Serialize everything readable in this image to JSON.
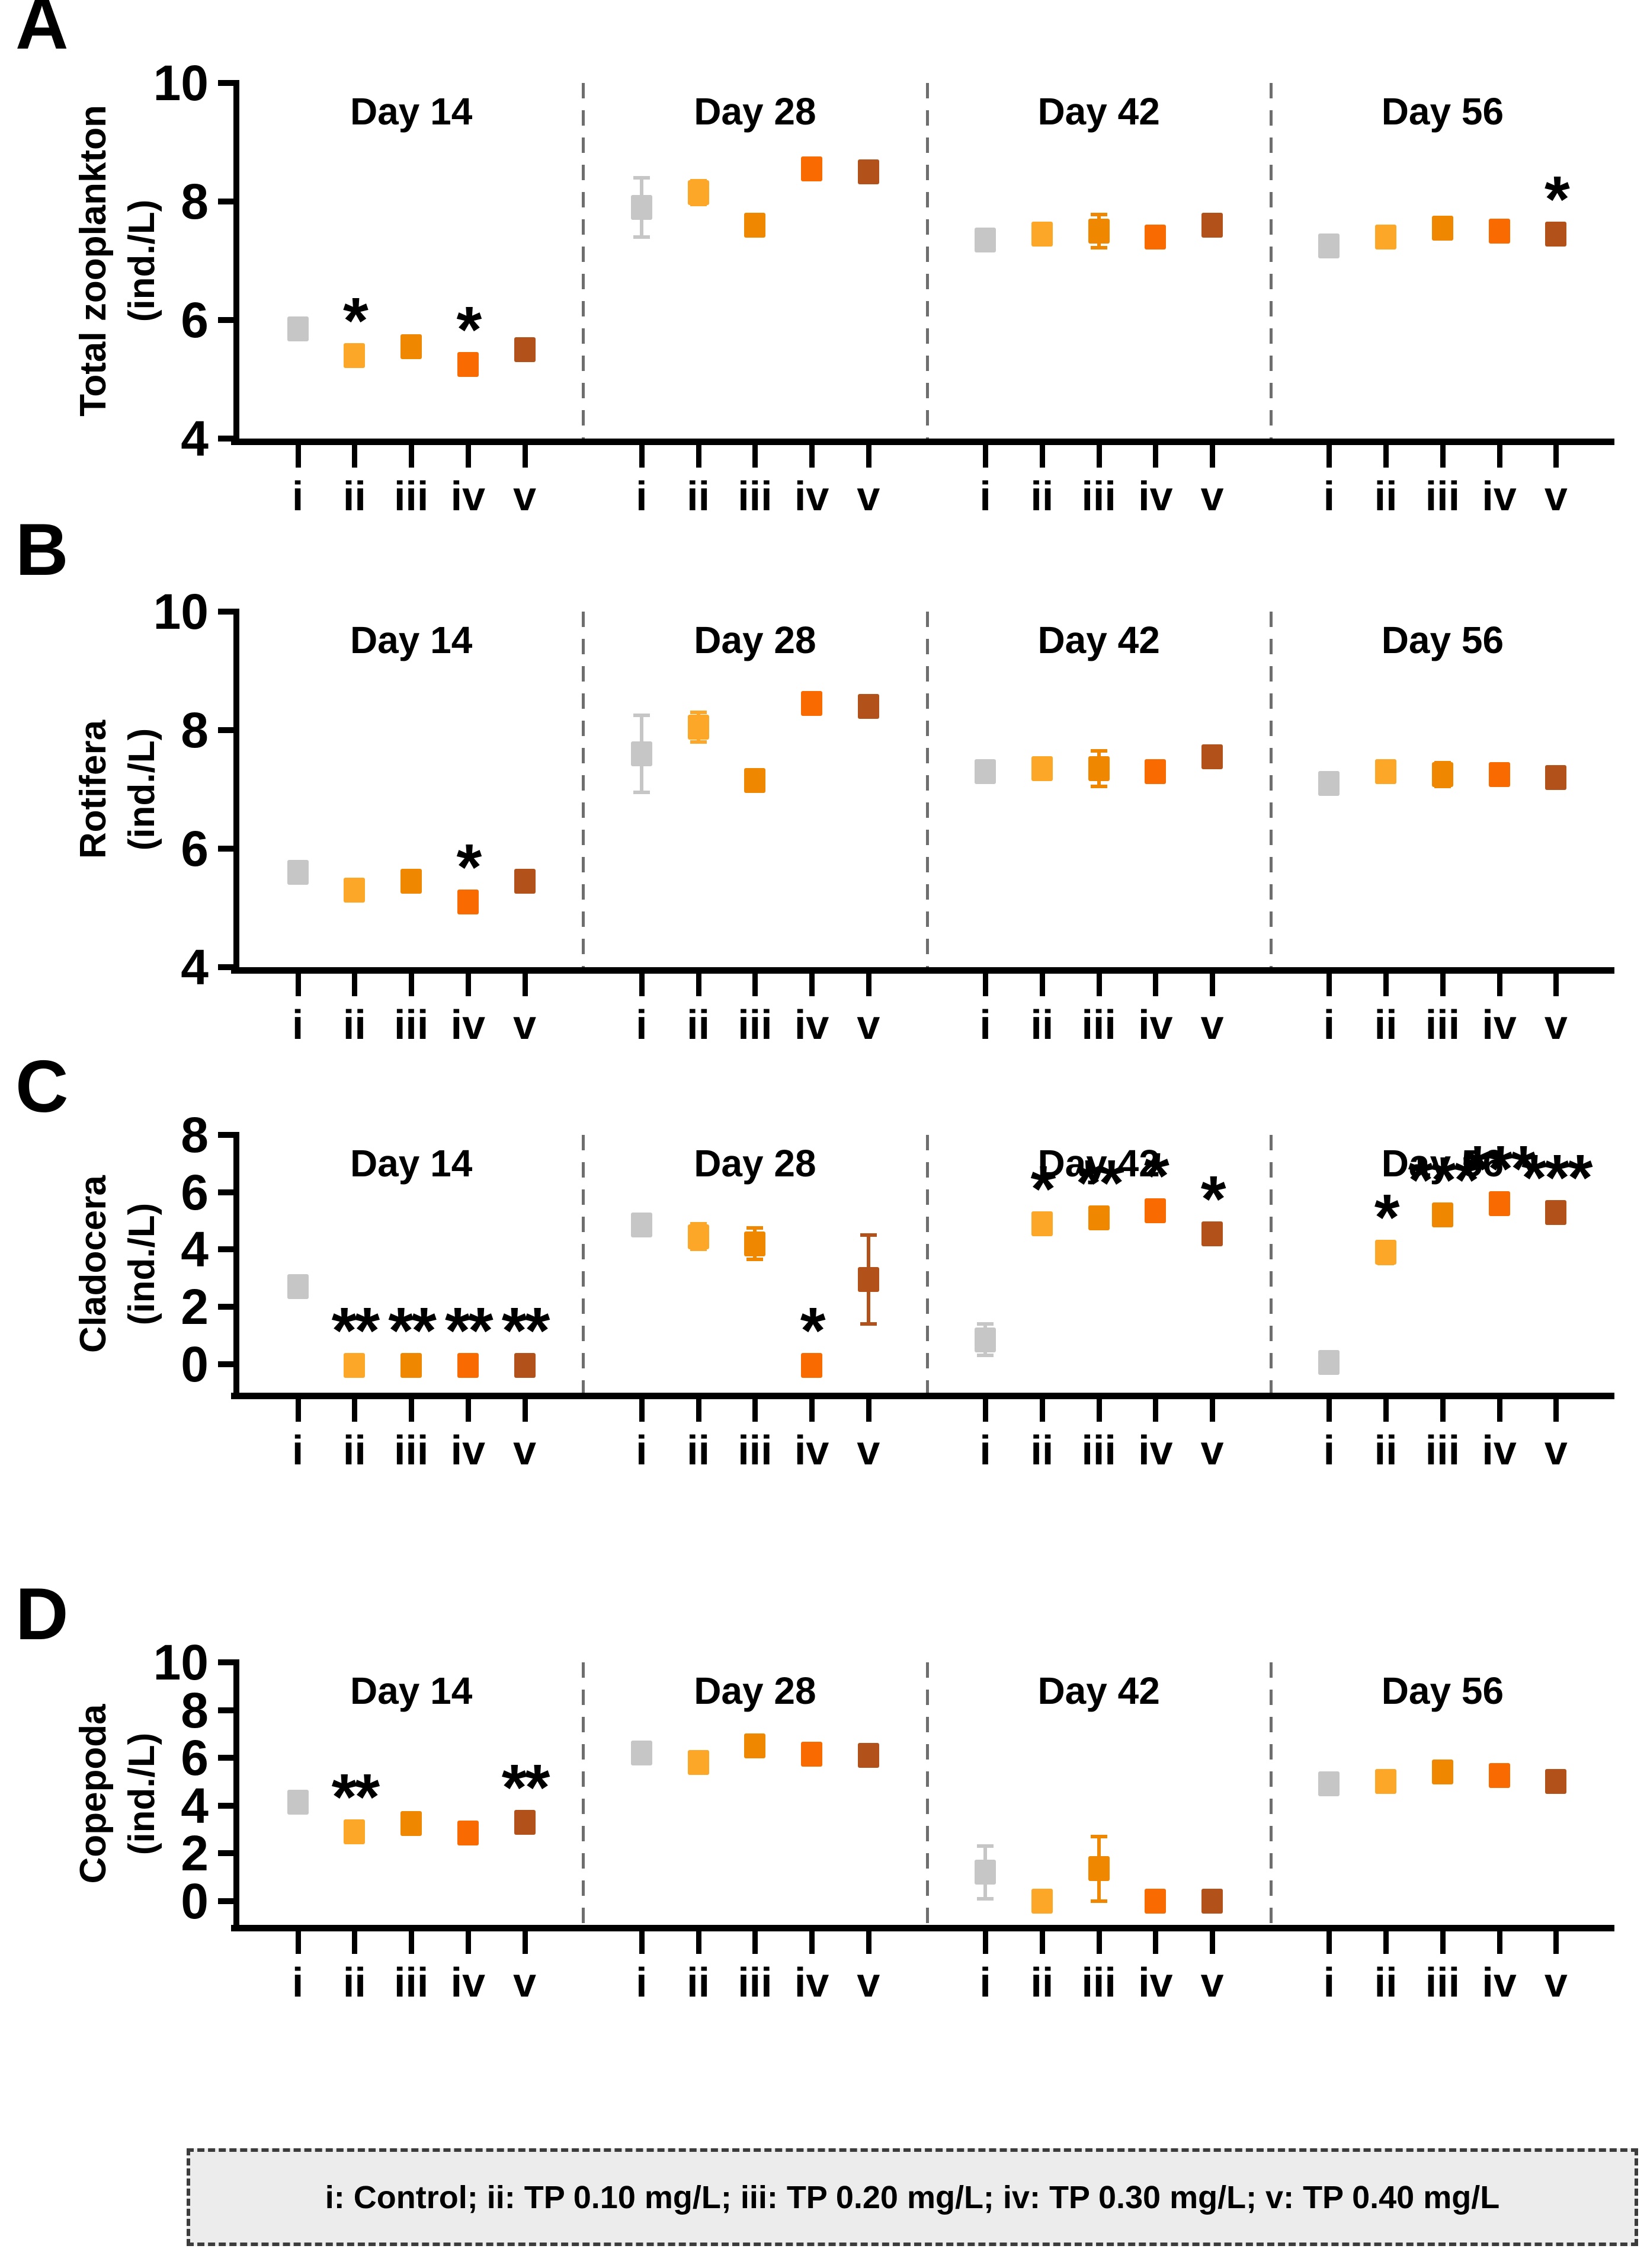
{
  "figure": {
    "panel_letters": [
      "A",
      "B",
      "C",
      "D"
    ]
  },
  "legend": {
    "text": "i: Control; ii: TP 0.10 mg/L; iii: TP 0.20 mg/L; iv: TP 0.30 mg/L; v: TP 0.40 mg/L"
  },
  "treatments": [
    {
      "key": "i",
      "label": "Control",
      "color": "#C6C6C6"
    },
    {
      "key": "ii",
      "label": "TP 0.10 mg/L",
      "color": "#FCA728"
    },
    {
      "key": "iii",
      "label": "TP 0.20 mg/L",
      "color": "#F08700"
    },
    {
      "key": "iv",
      "label": "TP 0.30 mg/L",
      "color": "#F96B00"
    },
    {
      "key": "v",
      "label": "TP 0.40 mg/L",
      "color": "#B3511B"
    }
  ],
  "chart_data": [
    {
      "type": "scatter",
      "panel": "A",
      "ylabel": "Total zooplankton",
      "ylabel_unit": "(ind./L)",
      "ylim": [
        4,
        10
      ],
      "yticks": [
        4,
        6,
        8,
        10
      ],
      "grid": false,
      "categories": [
        "i",
        "ii",
        "iii",
        "iv",
        "v"
      ],
      "groups": [
        "Day 14",
        "Day 28",
        "Day 42",
        "Day 56"
      ],
      "series": [
        {
          "group": "Day 14",
          "values": [
            5.85,
            5.4,
            5.55,
            5.25,
            5.5
          ],
          "errors": [
            0.07,
            0.05,
            0.05,
            0.05,
            0.07
          ],
          "sig": [
            "",
            "*",
            "",
            "*",
            ""
          ]
        },
        {
          "group": "Day 28",
          "values": [
            7.9,
            8.15,
            7.6,
            8.55,
            8.5
          ],
          "errors": [
            0.5,
            0.2,
            0.06,
            0.15,
            0.1
          ],
          "sig": [
            "",
            "",
            "",
            "",
            ""
          ]
        },
        {
          "group": "Day 42",
          "values": [
            7.35,
            7.45,
            7.5,
            7.4,
            7.6
          ],
          "errors": [
            0.06,
            0.12,
            0.28,
            0.1,
            0.06
          ],
          "sig": [
            "",
            "",
            "",
            "",
            ""
          ]
        },
        {
          "group": "Day 56",
          "values": [
            7.25,
            7.4,
            7.55,
            7.5,
            7.45
          ],
          "errors": [
            0.05,
            0.05,
            0.1,
            0.07,
            0.06
          ],
          "sig": [
            "",
            "",
            "",
            "",
            "*"
          ]
        }
      ]
    },
    {
      "type": "scatter",
      "panel": "B",
      "ylabel": "Rotifera",
      "ylabel_unit": "(ind./L)",
      "ylim": [
        4,
        10
      ],
      "yticks": [
        4,
        6,
        8,
        10
      ],
      "grid": false,
      "categories": [
        "i",
        "ii",
        "iii",
        "iv",
        "v"
      ],
      "groups": [
        "Day 14",
        "Day 28",
        "Day 42",
        "Day 56"
      ],
      "series": [
        {
          "group": "Day 14",
          "values": [
            5.6,
            5.3,
            5.45,
            5.1,
            5.45
          ],
          "errors": [
            0.06,
            0.05,
            0.05,
            0.05,
            0.18
          ],
          "sig": [
            "",
            "",
            "",
            "*",
            ""
          ]
        },
        {
          "group": "Day 28",
          "values": [
            7.6,
            8.05,
            7.15,
            8.45,
            8.4
          ],
          "errors": [
            0.65,
            0.25,
            0.06,
            0.1,
            0.1
          ],
          "sig": [
            "",
            "",
            "",
            "",
            ""
          ]
        },
        {
          "group": "Day 42",
          "values": [
            7.3,
            7.35,
            7.35,
            7.3,
            7.55
          ],
          "errors": [
            0.1,
            0.12,
            0.3,
            0.08,
            0.06
          ],
          "sig": [
            "",
            "",
            "",
            "",
            ""
          ]
        },
        {
          "group": "Day 56",
          "values": [
            7.1,
            7.3,
            7.25,
            7.25,
            7.2
          ],
          "errors": [
            0.05,
            0.05,
            0.2,
            0.15,
            0.07
          ],
          "sig": [
            "",
            "",
            "",
            "",
            ""
          ]
        }
      ]
    },
    {
      "type": "scatter",
      "panel": "C",
      "ylabel": "Cladocera",
      "ylabel_unit": "(ind./L)",
      "ylim": [
        -1,
        8
      ],
      "yticks": [
        0,
        2,
        4,
        6,
        8
      ],
      "grid": false,
      "categories": [
        "i",
        "ii",
        "iii",
        "iv",
        "v"
      ],
      "groups": [
        "Day 14",
        "Day 28",
        "Day 42",
        "Day 56"
      ],
      "series": [
        {
          "group": "Day 14",
          "values": [
            2.7,
            -0.05,
            -0.05,
            -0.05,
            -0.05
          ],
          "errors": [
            0.08,
            0.05,
            0.05,
            0.05,
            0.08
          ],
          "sig": [
            "",
            "**",
            "**",
            "**",
            "**"
          ]
        },
        {
          "group": "Day 28",
          "values": [
            4.85,
            4.45,
            4.2,
            -0.05,
            2.95
          ],
          "errors": [
            0.35,
            0.45,
            0.55,
            0.06,
            1.55
          ],
          "sig": [
            "",
            "",
            "",
            "*",
            ""
          ]
        },
        {
          "group": "Day 42",
          "values": [
            0.85,
            4.9,
            5.1,
            5.35,
            4.55
          ],
          "errors": [
            0.55,
            0.1,
            0.15,
            0.12,
            0.28
          ],
          "sig": [
            "",
            "*",
            "**",
            "*",
            "*"
          ]
        },
        {
          "group": "Day 56",
          "values": [
            0.05,
            3.9,
            5.2,
            5.6,
            5.3
          ],
          "errors": [
            0.05,
            0.38,
            0.1,
            0.1,
            0.12
          ],
          "sig": [
            "",
            "*",
            "***",
            "***",
            "***"
          ]
        }
      ]
    },
    {
      "type": "scatter",
      "panel": "D",
      "ylabel": "Copepoda",
      "ylabel_unit": "(ind./L)",
      "ylim": [
        -1,
        10
      ],
      "yticks": [
        0,
        2,
        4,
        6,
        8,
        10
      ],
      "grid": false,
      "categories": [
        "i",
        "ii",
        "iii",
        "iv",
        "v"
      ],
      "groups": [
        "Day 14",
        "Day 28",
        "Day 42",
        "Day 56"
      ],
      "series": [
        {
          "group": "Day 14",
          "values": [
            4.15,
            2.9,
            3.25,
            2.85,
            3.3
          ],
          "errors": [
            0.08,
            0.08,
            0.2,
            0.35,
            0.1
          ],
          "sig": [
            "",
            "**",
            "",
            "",
            "**"
          ]
        },
        {
          "group": "Day 28",
          "values": [
            6.2,
            5.8,
            6.5,
            6.15,
            6.1
          ],
          "errors": [
            0.06,
            0.1,
            0.08,
            0.3,
            0.08
          ],
          "sig": [
            "",
            "",
            "",
            "",
            ""
          ]
        },
        {
          "group": "Day 42",
          "values": [
            1.2,
            0.0,
            1.35,
            0.0,
            0.0
          ],
          "errors": [
            1.1,
            0.05,
            1.35,
            0.05,
            0.05
          ],
          "sig": [
            "",
            "",
            "",
            "",
            ""
          ]
        },
        {
          "group": "Day 56",
          "values": [
            4.9,
            5.0,
            5.4,
            5.25,
            5.0
          ],
          "errors": [
            0.06,
            0.08,
            0.1,
            0.08,
            0.1
          ],
          "sig": [
            "",
            "",
            "",
            "",
            ""
          ]
        }
      ]
    }
  ]
}
